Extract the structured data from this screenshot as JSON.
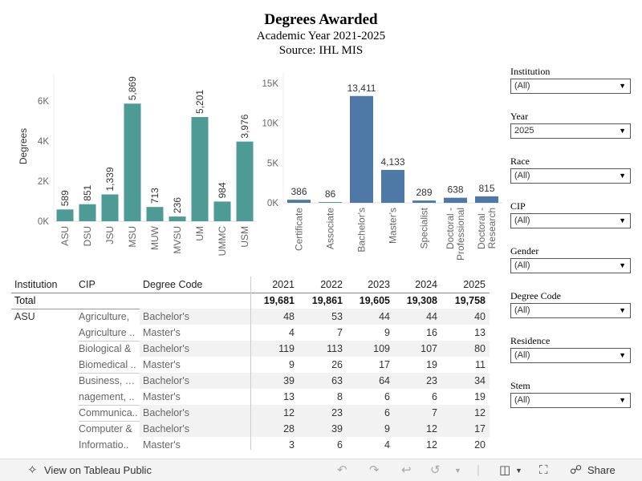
{
  "header": {
    "title": "Degrees Awarded",
    "subtitle": "Academic Year 2021-2025",
    "source": "Source: IHL MIS"
  },
  "chart_data": [
    {
      "type": "bar",
      "ylabel": "Degrees",
      "color": "#4e9b95",
      "categories": [
        "ASU",
        "DSU",
        "JSU",
        "MSU",
        "MUW",
        "MVSU",
        "UM",
        "UMMC",
        "USM"
      ],
      "values": [
        589,
        851,
        1339,
        5869,
        713,
        236,
        5201,
        984,
        3976
      ],
      "labels": [
        "589",
        "851",
        "1,339",
        "5,869",
        "713",
        "236",
        "5,201",
        "984",
        "3,976"
      ],
      "ylim": [
        0,
        7000
      ],
      "yticks": [
        0,
        2000,
        4000,
        6000
      ],
      "ytick_labels": [
        "0K",
        "2K",
        "4K",
        "6K"
      ]
    },
    {
      "type": "bar",
      "color": "#4e79a7",
      "categories": [
        "Certificate",
        "Associate",
        "Bachelor's",
        "Master's",
        "Specialist",
        "Doctoral - Professional",
        "Doctoral - Research"
      ],
      "category_lines": [
        [
          "Certificate"
        ],
        [
          "Associate"
        ],
        [
          "Bachelor's"
        ],
        [
          "Master's"
        ],
        [
          "Specialist"
        ],
        [
          "Doctoral -",
          "Professional"
        ],
        [
          "Doctoral -",
          "Research"
        ]
      ],
      "values": [
        386,
        86,
        13411,
        4133,
        289,
        638,
        815
      ],
      "labels": [
        "386",
        "86",
        "13,411",
        "4,133",
        "289",
        "638",
        "815"
      ],
      "ylim": [
        0,
        15500
      ],
      "yticks": [
        0,
        5000,
        10000,
        15000
      ],
      "ytick_labels": [
        "0K",
        "5K",
        "10K",
        "15K"
      ]
    }
  ],
  "filters": [
    {
      "label": "Institution",
      "value": "(All)"
    },
    {
      "label": "Year",
      "value": "2025"
    },
    {
      "label": "Race",
      "value": "(All)"
    },
    {
      "label": "CIP",
      "value": "(All)"
    },
    {
      "label": "Gender",
      "value": "(All)"
    },
    {
      "label": "Degree Code",
      "value": "(All)"
    },
    {
      "label": "Residence",
      "value": "(All)"
    },
    {
      "label": "Stem",
      "value": "(All)"
    }
  ],
  "table": {
    "headers": {
      "institution": "Institution",
      "cip": "CIP",
      "degree_code": "Degree Code",
      "years": [
        "2021",
        "2022",
        "2023",
        "2024",
        "2025"
      ]
    },
    "total": {
      "label": "Total",
      "values": [
        "19,681",
        "19,861",
        "19,605",
        "19,308",
        "19,758"
      ]
    },
    "institution": "ASU",
    "groups": [
      {
        "cip": [
          "Agriculture,",
          "Agriculture .."
        ],
        "rows": [
          {
            "code": "Bachelor's",
            "values": [
              "48",
              "53",
              "44",
              "44",
              "40"
            ]
          },
          {
            "code": "Master's",
            "values": [
              "4",
              "7",
              "9",
              "16",
              "13"
            ]
          }
        ]
      },
      {
        "cip": [
          "Biological &",
          "Biomedical .."
        ],
        "rows": [
          {
            "code": "Bachelor's",
            "values": [
              "119",
              "113",
              "109",
              "107",
              "80"
            ]
          },
          {
            "code": "Master's",
            "values": [
              "9",
              "26",
              "17",
              "19",
              "11"
            ]
          }
        ]
      },
      {
        "cip": [
          "Business, Ma",
          "nagement, .."
        ],
        "rows": [
          {
            "code": "Bachelor's",
            "values": [
              "39",
              "63",
              "64",
              "23",
              "34"
            ]
          },
          {
            "code": "Master's",
            "values": [
              "13",
              "8",
              "6",
              "6",
              "19"
            ]
          }
        ]
      },
      {
        "cip": [
          "Communica.."
        ],
        "rows": [
          {
            "code": "Bachelor's",
            "values": [
              "12",
              "23",
              "6",
              "7",
              "12"
            ]
          }
        ]
      },
      {
        "cip": [
          "Computer &",
          "Informatio.."
        ],
        "rows": [
          {
            "code": "Bachelor's",
            "values": [
              "28",
              "39",
              "9",
              "12",
              "17"
            ]
          },
          {
            "code": "Master's",
            "values": [
              "3",
              "6",
              "4",
              "12",
              "20"
            ]
          }
        ]
      }
    ]
  },
  "footer": {
    "view_label": "View on Tableau Public",
    "share_label": "Share"
  }
}
